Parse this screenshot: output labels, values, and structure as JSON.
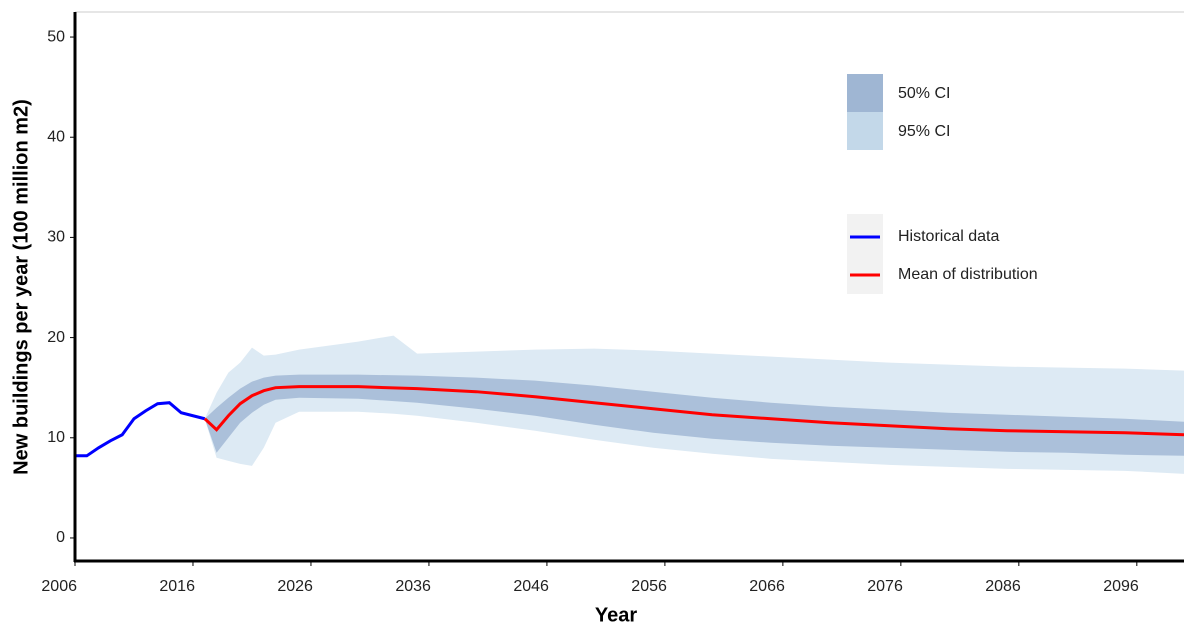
{
  "chart_data": {
    "type": "line",
    "xlabel": "Year",
    "ylabel": "New buildings per year (100 million m2)",
    "xlim": [
      2006,
      2100
    ],
    "xticks": [
      2006,
      2016,
      2026,
      2036,
      2046,
      2056,
      2066,
      2076,
      2086,
      2096
    ],
    "ylim": [
      -2.3,
      52.5
    ],
    "yticks": [
      0,
      10,
      20,
      30,
      40,
      50
    ],
    "bands": [
      {
        "name": "95% CI",
        "color": "#ddeaf4",
        "legend_color": "#c3d8e9",
        "x": [
          2017,
          2018,
          2019,
          2020,
          2021,
          2022,
          2023,
          2025,
          2030,
          2033,
          2035,
          2040,
          2045,
          2050,
          2055,
          2060,
          2065,
          2070,
          2075,
          2080,
          2085,
          2090,
          2095,
          2100
        ],
        "lower": [
          11.9,
          8,
          7.7,
          7.4,
          7.2,
          9,
          11.5,
          12.6,
          12.6,
          12.4,
          12.2,
          11.5,
          10.7,
          9.8,
          9,
          8.4,
          7.9,
          7.6,
          7.3,
          7.1,
          6.9,
          6.8,
          6.7,
          6.4
        ],
        "upper": [
          11.9,
          14.5,
          16.5,
          17.5,
          19,
          18.2,
          18.3,
          18.8,
          19.6,
          20.2,
          18.4,
          18.6,
          18.8,
          18.9,
          18.7,
          18.4,
          18.1,
          17.8,
          17.5,
          17.3,
          17.1,
          17,
          16.9,
          16.7
        ]
      },
      {
        "name": "50% CI",
        "color": "#abc0da",
        "legend_color": "#9fb6d3",
        "x": [
          2017,
          2018,
          2019,
          2020,
          2021,
          2022,
          2023,
          2025,
          2030,
          2035,
          2040,
          2045,
          2050,
          2055,
          2060,
          2065,
          2070,
          2075,
          2080,
          2085,
          2090,
          2095,
          2100
        ],
        "lower": [
          11.9,
          8.5,
          10,
          11.5,
          12.5,
          13.3,
          13.8,
          14,
          13.9,
          13.5,
          12.9,
          12.2,
          11.3,
          10.5,
          9.9,
          9.5,
          9.2,
          9,
          8.8,
          8.6,
          8.5,
          8.3,
          8.2
        ],
        "upper": [
          11.9,
          13,
          14,
          14.9,
          15.6,
          16,
          16.2,
          16.3,
          16.3,
          16.2,
          16,
          15.7,
          15.2,
          14.6,
          14,
          13.5,
          13.1,
          12.8,
          12.5,
          12.3,
          12.1,
          11.9,
          11.6
        ]
      }
    ],
    "series": [
      {
        "name": "Historical data",
        "color": "#0000ff",
        "x": [
          2006,
          2007,
          2008,
          2009,
          2010,
          2011,
          2012,
          2013,
          2014,
          2015,
          2016,
          2017
        ],
        "values": [
          8.2,
          8.2,
          9,
          9.7,
          10.3,
          11.9,
          12.7,
          13.4,
          13.5,
          12.5,
          12.2,
          11.9
        ]
      },
      {
        "name": "Mean of distribution",
        "color": "#ff0000",
        "x": [
          2017,
          2018,
          2019,
          2020,
          2021,
          2022,
          2023,
          2025,
          2030,
          2035,
          2040,
          2045,
          2050,
          2055,
          2060,
          2065,
          2070,
          2075,
          2080,
          2085,
          2090,
          2095,
          2100
        ],
        "values": [
          11.9,
          10.8,
          12.2,
          13.4,
          14.2,
          14.7,
          15,
          15.1,
          15.1,
          14.9,
          14.6,
          14.1,
          13.5,
          12.9,
          12.3,
          11.9,
          11.5,
          11.2,
          10.9,
          10.7,
          10.6,
          10.5,
          10.3
        ]
      }
    ]
  }
}
